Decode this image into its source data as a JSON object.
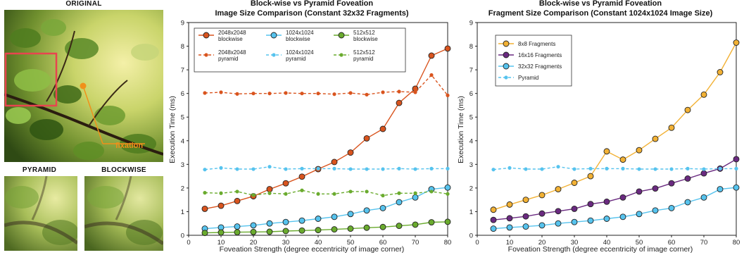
{
  "panels": {
    "original_label": "ORIGINAL",
    "pyramid_label": "PYRAMID",
    "blockwise_label": "BLOCKWISE",
    "fixation_label": "fixation"
  },
  "colors": {
    "c2048": "#d9541e",
    "c1024": "#56c3ee",
    "c512": "#6aab2e",
    "c8": "#f2b134",
    "c16": "#6a2a80",
    "c32": "#56c3ee",
    "pyr": "#56c3ee",
    "marker_box": "#e8454f",
    "fixation": "#f0901a"
  },
  "chart_data": [
    {
      "type": "line",
      "title": "Block-wise vs Pyramid Foveation",
      "subtitle": "Image Size Comparison (Constant 32x32 Fragments)",
      "xlabel": "Foveation Strength (degree eccentricity of image corner)",
      "ylabel": "Execution Time (ms)",
      "xlim": [
        0,
        80
      ],
      "ylim": [
        0,
        9
      ],
      "xticks": [
        0,
        10,
        20,
        30,
        40,
        50,
        60,
        70,
        80
      ],
      "yticks": [
        0,
        1,
        2,
        3,
        4,
        5,
        6,
        7,
        8,
        9
      ],
      "legend_position": "top-left",
      "x": [
        5,
        10,
        15,
        20,
        25,
        30,
        35,
        40,
        45,
        50,
        55,
        60,
        65,
        70,
        75,
        80
      ],
      "series": [
        {
          "name": "2048x2048 blockwise",
          "color_key": "c2048",
          "style": "solid",
          "marker": "circle",
          "values": [
            1.12,
            1.25,
            1.45,
            1.65,
            1.95,
            2.2,
            2.48,
            2.8,
            3.1,
            3.5,
            4.1,
            4.5,
            5.6,
            6.2,
            7.6,
            7.9
          ]
        },
        {
          "name": "1024x1024 blockwise",
          "color_key": "c1024",
          "style": "solid",
          "marker": "circle",
          "values": [
            0.28,
            0.33,
            0.37,
            0.42,
            0.5,
            0.56,
            0.62,
            0.7,
            0.78,
            0.9,
            1.05,
            1.15,
            1.4,
            1.6,
            1.95,
            2.02
          ]
        },
        {
          "name": "512x512 blockwise",
          "color_key": "c512",
          "style": "solid",
          "marker": "circle",
          "values": [
            0.1,
            0.12,
            0.13,
            0.14,
            0.15,
            0.18,
            0.2,
            0.22,
            0.25,
            0.28,
            0.32,
            0.35,
            0.4,
            0.45,
            0.55,
            0.57
          ]
        },
        {
          "name": "2048x2048 pyramid",
          "color_key": "c2048",
          "style": "dashed",
          "marker": "dot",
          "values": [
            6.02,
            6.05,
            5.98,
            6.0,
            6.0,
            6.02,
            6.0,
            6.0,
            5.97,
            6.02,
            5.95,
            6.05,
            6.08,
            6.05,
            6.78,
            5.92
          ]
        },
        {
          "name": "1024x1024 pyramid",
          "color_key": "c1024",
          "style": "dashed",
          "marker": "dot",
          "values": [
            2.78,
            2.85,
            2.8,
            2.8,
            2.9,
            2.8,
            2.82,
            2.82,
            2.82,
            2.8,
            2.8,
            2.8,
            2.82,
            2.8,
            2.82,
            2.82
          ]
        },
        {
          "name": "512x512 pyramid",
          "color_key": "c512",
          "style": "dashed",
          "marker": "dot",
          "values": [
            1.8,
            1.78,
            1.85,
            1.7,
            1.78,
            1.75,
            1.9,
            1.75,
            1.75,
            1.85,
            1.85,
            1.68,
            1.78,
            1.78,
            1.85,
            1.75
          ]
        }
      ]
    },
    {
      "type": "line",
      "title": "Block-wise vs Pyramid Foveation",
      "subtitle": "Fragment Size Comparison (Constant 1024x1024 Image Size)",
      "xlabel": "Foveation Strength (degree eccentricity of image corner)",
      "ylabel": "Execution Time (ms)",
      "xlim": [
        0,
        80
      ],
      "ylim": [
        0,
        9
      ],
      "xticks": [
        0,
        10,
        20,
        30,
        40,
        50,
        60,
        70,
        80
      ],
      "yticks": [
        0,
        1,
        2,
        3,
        4,
        5,
        6,
        7,
        8,
        9
      ],
      "legend_position": "top-left",
      "x": [
        5,
        10,
        15,
        20,
        25,
        30,
        35,
        40,
        45,
        50,
        55,
        60,
        65,
        70,
        75,
        80
      ],
      "series": [
        {
          "name": "8x8 Fragments",
          "color_key": "c8",
          "style": "solid",
          "marker": "circle",
          "values": [
            1.08,
            1.3,
            1.5,
            1.7,
            1.95,
            2.22,
            2.5,
            3.55,
            3.2,
            3.6,
            4.08,
            4.55,
            5.3,
            5.95,
            6.9,
            8.15
          ]
        },
        {
          "name": "16x16 Fragments",
          "color_key": "c16",
          "style": "solid",
          "marker": "circle",
          "values": [
            0.65,
            0.72,
            0.8,
            0.92,
            1.02,
            1.12,
            1.32,
            1.42,
            1.6,
            1.85,
            1.98,
            2.2,
            2.4,
            2.62,
            2.82,
            3.22
          ]
        },
        {
          "name": "32x32 Fragments",
          "color_key": "c32",
          "style": "solid",
          "marker": "circle",
          "values": [
            0.28,
            0.33,
            0.37,
            0.42,
            0.5,
            0.56,
            0.62,
            0.7,
            0.78,
            0.9,
            1.05,
            1.15,
            1.4,
            1.6,
            1.95,
            2.02
          ]
        },
        {
          "name": "Pyramid",
          "color_key": "pyr",
          "style": "dashed",
          "marker": "dot",
          "values": [
            2.78,
            2.85,
            2.8,
            2.8,
            2.9,
            2.8,
            2.82,
            2.82,
            2.82,
            2.8,
            2.8,
            2.8,
            2.82,
            2.8,
            2.82,
            2.82
          ]
        }
      ]
    }
  ]
}
